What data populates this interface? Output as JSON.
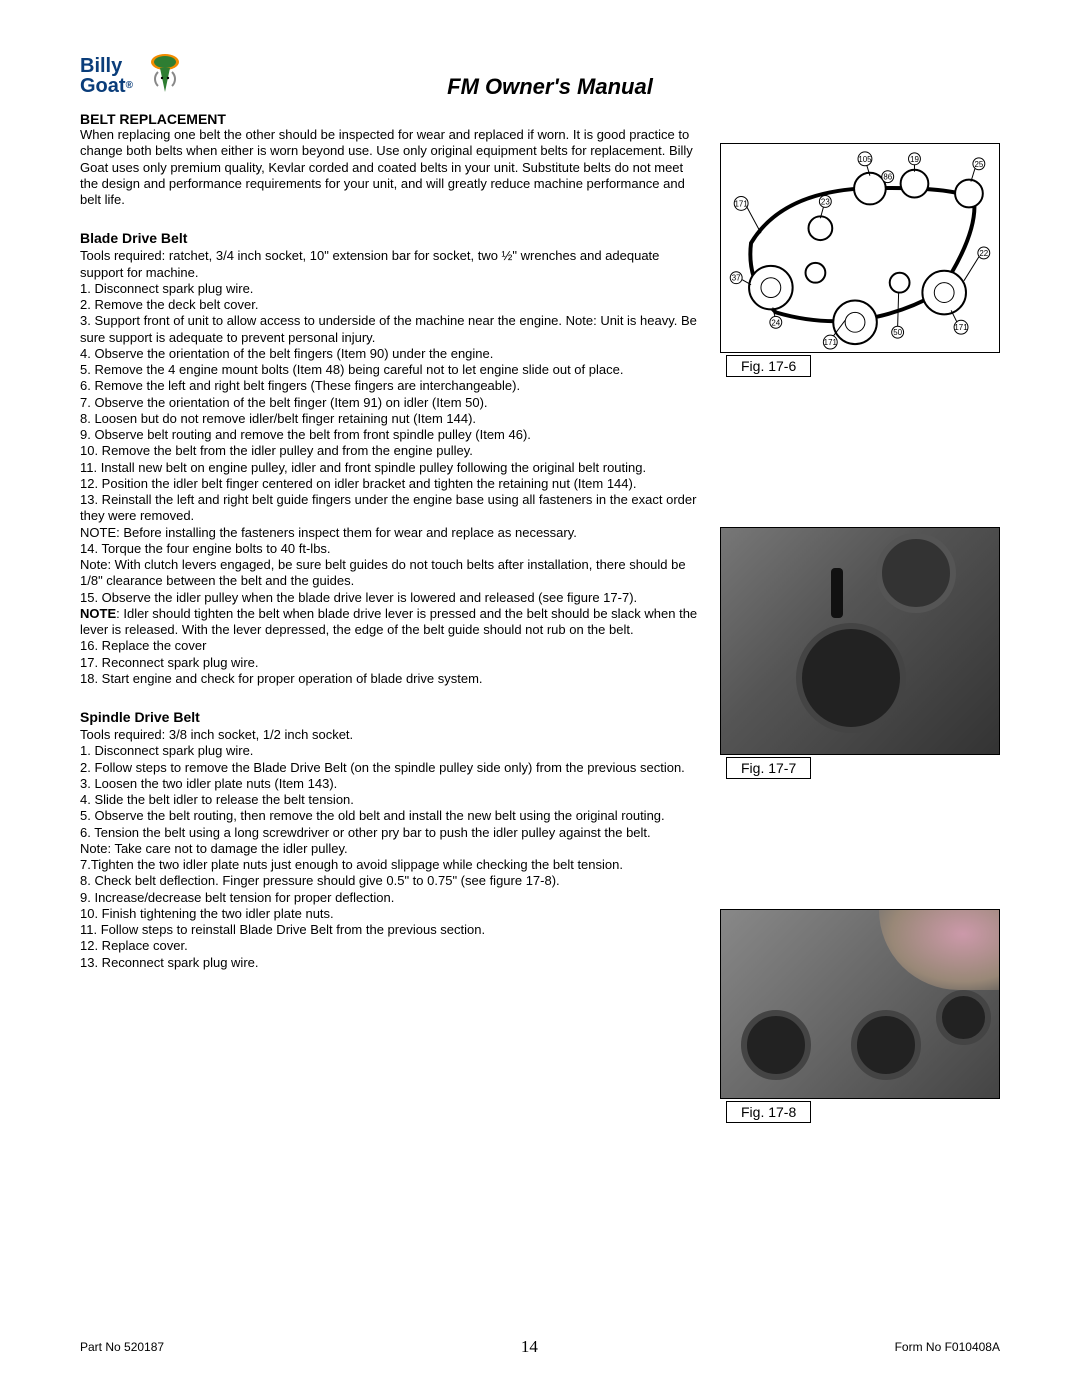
{
  "logo": {
    "line1": "Billy",
    "line2": "Goat",
    "brand_color": "#0a3d7a",
    "accent": "#2e7d32",
    "leaf": "#f28c00"
  },
  "title": "FM Owner's Manual",
  "section1": {
    "heading": "BELT REPLACEMENT",
    "body": "When replacing one belt the other should be inspected for wear and replaced if worn. It is good practice to change both belts when either is worn beyond use. Use only original equipment belts for replacement. Billy Goat uses only premium quality, Kevlar corded and coated belts in your unit. Substitute belts do not meet the design and performance requirements for your unit, and will greatly reduce machine performance and belt life."
  },
  "blade": {
    "heading": "Blade Drive Belt",
    "tools": "Tools required: ratchet, 3/4 inch socket, 10\" extension bar for socket, two ½\" wrenches and adequate support for machine.",
    "steps": [
      "1. Disconnect spark plug wire.",
      "2. Remove the deck belt cover.",
      "3. Support front of unit to allow access to underside of the machine near the engine. Note: Unit is heavy.  Be sure support is adequate to prevent personal injury.",
      "4. Observe the orientation of the belt fingers (Item 90) under the engine.",
      "5.  Remove the 4 engine mount bolts (Item 48) being careful not to let engine slide out of place.",
      "6. Remove the left and right belt fingers (These fingers are interchangeable).",
      "7. Observe the orientation of the belt finger (Item 91) on idler (Item 50).",
      "8. Loosen but do not remove idler/belt finger retaining nut (Item 144).",
      "9. Observe belt routing and remove the belt from front spindle pulley (Item 46).",
      "10. Remove the belt from the idler pulley and from the engine pulley.",
      "11. Install new belt on engine pulley, idler and front spindle pulley following the original belt routing.",
      "12. Position the idler belt finger centered on idler bracket and tighten the retaining nut (Item 144).",
      "13. Reinstall the left and right belt guide fingers under the engine base using all fasteners in the exact order they were removed."
    ],
    "note1": "NOTE: Before installing the fasteners inspect them for wear and replace as necessary.",
    "step14": "14. Torque the four engine bolts to 40 ft-lbs.",
    "note2": "Note: With clutch levers engaged, be sure belt guides do not touch belts after installation, there should be 1/8\" clearance between the belt and the guides.",
    "step15": "15. Observe the idler pulley when the blade drive lever is lowered and released (see figure 17-7).",
    "note3_bold": "NOTE",
    "note3_rest": ": Idler should tighten the belt when blade drive lever is pressed and the belt should be slack when the lever is released. With the lever depressed, the edge of the belt guide should not rub on the belt.",
    "steps_end": [
      "16. Replace the cover",
      "17. Reconnect spark plug wire.",
      "18. Start engine and check for proper operation of blade drive system."
    ]
  },
  "spindle": {
    "heading": "Spindle Drive Belt",
    "tools": "Tools required: 3/8 inch socket, 1/2 inch socket.",
    "steps": [
      "1. Disconnect spark plug wire.",
      "2. Follow steps to remove the Blade Drive Belt (on the spindle pulley side only) from the previous section.",
      "3. Loosen the two idler plate nuts (Item 143).",
      "4. Slide the belt idler to release the belt tension.",
      "5. Observe the belt routing, then remove the old belt and install the new belt using the original routing.",
      "6. Tension the belt using a long screwdriver or other pry bar to push the idler pulley against the belt."
    ],
    "note": "Note: Take care not to damage the idler pulley.",
    "steps2": [
      "7.Tighten the two idler plate nuts just enough to avoid slippage while checking the belt tension.",
      "8. Check belt deflection. Finger pressure should give 0.5\" to 0.75\" (see figure 17-8).",
      "9. Increase/decrease belt tension for proper deflection.",
      "10. Finish tightening the two idler plate nuts.",
      "11. Follow steps to reinstall Blade Drive Belt from the previous section.",
      "12. Replace cover.",
      "13. Reconnect spark plug wire."
    ]
  },
  "figures": {
    "f1": "Fig. 17-6",
    "f2": "Fig. 17-7",
    "f3": "Fig. 17-8",
    "diagram_labels": [
      "105",
      "19",
      "25",
      "86",
      "171",
      "23",
      "22",
      "37",
      "24",
      "171",
      "50",
      "171"
    ]
  },
  "footer": {
    "left": "Part No 520187",
    "page": "14",
    "right": "Form No F010408A"
  }
}
